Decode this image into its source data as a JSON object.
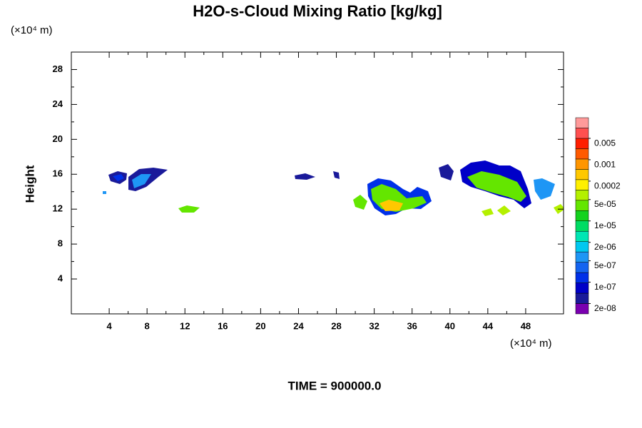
{
  "chart_data": {
    "type": "contour",
    "title": "H2O-s-Cloud Mixing Ratio [kg/kg]",
    "y_label": "Height",
    "y_unit": "(×10⁴ m)",
    "x_unit": "(×10⁴ m)",
    "footer": "TIME = 900000.0",
    "xlim": [
      0,
      52
    ],
    "ylim": [
      0,
      30
    ],
    "xticks": [
      4,
      8,
      12,
      16,
      20,
      24,
      28,
      32,
      36,
      40,
      44,
      48
    ],
    "yticks": [
      4,
      8,
      12,
      16,
      20,
      24,
      28
    ],
    "colorbar": {
      "log": true,
      "colors": [
        "#7a00b0",
        "#1a1a9a",
        "#0000c8",
        "#0030e8",
        "#1464f0",
        "#1e96f5",
        "#00c8f0",
        "#00e6b4",
        "#00dc64",
        "#14d21e",
        "#64e600",
        "#b4f000",
        "#fff000",
        "#ffc800",
        "#ff9600",
        "#ff5a00",
        "#ff1e00",
        "#ff5050",
        "#ff9a9a"
      ],
      "ticks": [
        {
          "value": 2e-08,
          "label": "2e-08"
        },
        {
          "value": 1e-07,
          "label": "1e-07"
        },
        {
          "value": 5e-07,
          "label": "5e-07"
        },
        {
          "value": 2e-06,
          "label": "2e-06"
        },
        {
          "value": 1e-05,
          "label": "1e-05"
        },
        {
          "value": 5e-05,
          "label": "5e-05"
        },
        0.0002,
        0.001,
        0.005
      ]
    }
  }
}
